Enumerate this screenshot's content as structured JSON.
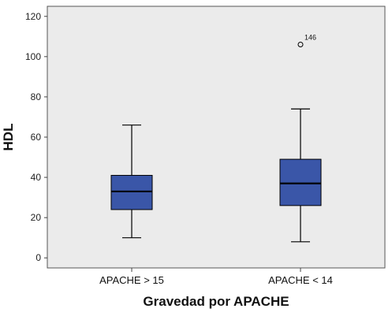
{
  "chart_data": {
    "type": "boxplot",
    "xlabel": "Gravedad por APACHE",
    "ylabel": "HDL",
    "ylim": [
      -5,
      125
    ],
    "yticks": [
      0,
      20,
      40,
      60,
      80,
      100,
      120
    ],
    "categories": [
      "APACHE > 15",
      "APACHE < 14"
    ],
    "boxes": [
      {
        "category": "APACHE > 15",
        "whisker_low": 10,
        "q1": 24,
        "median": 33,
        "q3": 41,
        "whisker_high": 66,
        "outliers": []
      },
      {
        "category": "APACHE < 14",
        "whisker_low": 8,
        "q1": 26,
        "median": 37,
        "q3": 49,
        "whisker_high": 74,
        "outliers": [
          {
            "value": 106,
            "label": "146"
          }
        ]
      }
    ],
    "colors": {
      "plot_background": "#ebebeb",
      "box_fill": "#3a56a8",
      "line": "#000000"
    },
    "grid": false
  }
}
